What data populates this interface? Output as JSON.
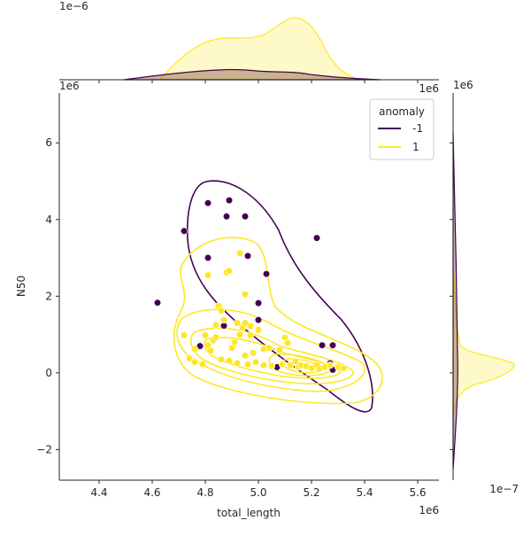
{
  "chart_data": {
    "type": "scatter",
    "subtype": "jointplot-kde",
    "xlabel": "total_length",
    "ylabel": "N50",
    "x_scale_label": "1e6",
    "y_scale_label": "1e6",
    "top_marginal_scale_label": "1e−6",
    "right_marginal_scale_label": "1e−7",
    "xlim": [
      4.25,
      5.68
    ],
    "ylim": [
      -2.8,
      7.3
    ],
    "x_ticks": [
      {
        "value": 4.4,
        "label": "4.4"
      },
      {
        "value": 4.6,
        "label": "4.6"
      },
      {
        "value": 4.8,
        "label": "4.8"
      },
      {
        "value": 5.0,
        "label": "5.0"
      },
      {
        "value": 5.2,
        "label": "5.2"
      },
      {
        "value": 5.4,
        "label": "5.4"
      },
      {
        "value": 5.6,
        "label": "5.6"
      }
    ],
    "y_ticks": [
      {
        "value": -2,
        "label": "−2"
      },
      {
        "value": 0,
        "label": "0"
      },
      {
        "value": 2,
        "label": "2"
      },
      {
        "value": 4,
        "label": "4"
      },
      {
        "value": 6,
        "label": "6"
      }
    ],
    "grid": false,
    "legend": {
      "title": "anomaly",
      "position": "top-right",
      "entries": [
        {
          "label": "-1",
          "color": "#440154"
        },
        {
          "label": "1",
          "color": "#fde725"
        }
      ]
    },
    "series": [
      {
        "name": "-1",
        "color": "#440154",
        "points": [
          [
            4.62,
            1.83
          ],
          [
            4.72,
            3.7
          ],
          [
            4.78,
            0.7
          ],
          [
            4.81,
            4.43
          ],
          [
            4.81,
            3.0
          ],
          [
            4.88,
            4.08
          ],
          [
            4.89,
            4.5
          ],
          [
            4.95,
            4.08
          ],
          [
            4.96,
            3.05
          ],
          [
            4.87,
            1.23
          ],
          [
            5.0,
            1.82
          ],
          [
            5.0,
            1.38
          ],
          [
            5.03,
            2.58
          ],
          [
            5.07,
            0.15
          ],
          [
            5.22,
            3.52
          ],
          [
            5.24,
            0.72
          ],
          [
            5.27,
            0.25
          ],
          [
            5.28,
            0.72
          ],
          [
            5.28,
            0.08
          ]
        ]
      },
      {
        "name": "1",
        "color": "#fde725",
        "points": [
          [
            4.72,
            0.98
          ],
          [
            4.74,
            0.38
          ],
          [
            4.76,
            0.28
          ],
          [
            4.76,
            0.62
          ],
          [
            4.79,
            0.22
          ],
          [
            4.8,
            0.98
          ],
          [
            4.81,
            0.72
          ],
          [
            4.82,
            0.58
          ],
          [
            4.81,
            2.55
          ],
          [
            4.83,
            0.85
          ],
          [
            4.84,
            1.25
          ],
          [
            4.84,
            0.93
          ],
          [
            4.85,
            1.75
          ],
          [
            4.86,
            0.35
          ],
          [
            4.86,
            1.62
          ],
          [
            4.87,
            1.38
          ],
          [
            4.88,
            2.62
          ],
          [
            4.89,
            2.66
          ],
          [
            4.89,
            0.32
          ],
          [
            4.9,
            0.65
          ],
          [
            4.91,
            0.8
          ],
          [
            4.92,
            0.25
          ],
          [
            4.92,
            1.3
          ],
          [
            4.93,
            1.0
          ],
          [
            4.93,
            3.12
          ],
          [
            4.94,
            1.18
          ],
          [
            4.95,
            0.45
          ],
          [
            4.95,
            2.05
          ],
          [
            4.95,
            1.3
          ],
          [
            4.96,
            0.22
          ],
          [
            4.97,
            0.98
          ],
          [
            4.97,
            1.22
          ],
          [
            4.98,
            0.52
          ],
          [
            4.99,
            0.28
          ],
          [
            5.0,
            1.12
          ],
          [
            5.02,
            0.62
          ],
          [
            5.02,
            0.2
          ],
          [
            5.04,
            0.65
          ],
          [
            5.05,
            0.18
          ],
          [
            5.08,
            0.6
          ],
          [
            5.09,
            0.22
          ],
          [
            5.1,
            0.92
          ],
          [
            5.11,
            0.78
          ],
          [
            5.12,
            0.2
          ],
          [
            5.14,
            0.3
          ],
          [
            5.15,
            0.15
          ],
          [
            5.16,
            0.2
          ],
          [
            5.18,
            0.18
          ],
          [
            5.2,
            0.12
          ],
          [
            5.22,
            0.2
          ],
          [
            5.23,
            0.1
          ],
          [
            5.25,
            0.15
          ],
          [
            5.27,
            0.2
          ],
          [
            5.3,
            0.15
          ],
          [
            5.32,
            0.12
          ]
        ]
      }
    ]
  }
}
